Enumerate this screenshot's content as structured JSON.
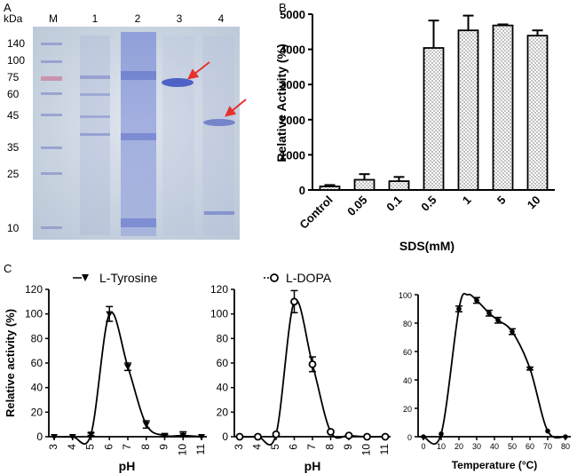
{
  "panels": {
    "a": "A",
    "b": "B",
    "c": "C"
  },
  "gel": {
    "unit_label": "kDa",
    "lanes": [
      "M",
      "1",
      "2",
      "3",
      "4"
    ],
    "markers": [
      "140",
      "100",
      "75",
      "60",
      "45",
      "35",
      "25",
      "10"
    ],
    "colors": {
      "background": "#c9d3df",
      "band": "#5d6fc9",
      "marker_band": "#7b86c9",
      "pink_band": "#c98aa3",
      "arrow": "#e8302c"
    }
  },
  "chart_data": [
    {
      "type": "bar",
      "panel": "B",
      "categories": [
        "Control",
        "0.05",
        "0.1",
        "0.5",
        "1",
        "5",
        "10"
      ],
      "values": [
        100,
        290,
        250,
        4040,
        4540,
        4680,
        4390
      ],
      "errors": [
        40,
        160,
        120,
        780,
        420,
        30,
        150
      ],
      "xlabel": "SDS(mM)",
      "ylabel": "Relative Activity (%)",
      "ylim": [
        0,
        5000
      ],
      "yticks": [
        "0",
        "1000",
        "2000",
        "3000",
        "4000",
        "5000"
      ],
      "grid": false,
      "fill": "dotted"
    },
    {
      "type": "line",
      "panel": "C-left",
      "series": [
        {
          "name": "L-Tyrosine",
          "marker": "triangle-down",
          "x": [
            3,
            4,
            5,
            6,
            7,
            8,
            9,
            10,
            11
          ],
          "y": [
            0,
            0,
            2,
            100,
            57,
            10,
            1,
            1,
            0
          ],
          "err": [
            0,
            0,
            1,
            6,
            3,
            3,
            1,
            3,
            0
          ]
        }
      ],
      "xlabel": "pH",
      "ylabel": "Relative activity (%)",
      "xticks": [
        "3",
        "4",
        "5",
        "6",
        "7",
        "8",
        "9",
        "10",
        "11"
      ],
      "yticks": [
        "0",
        "20",
        "40",
        "60",
        "80",
        "100",
        "120"
      ],
      "ylim": [
        0,
        120
      ]
    },
    {
      "type": "line",
      "panel": "C-middle",
      "series": [
        {
          "name": "L-DOPA",
          "marker": "circle-open",
          "x": [
            3,
            4,
            5,
            6,
            7,
            8,
            9,
            10,
            11
          ],
          "y": [
            0,
            0,
            2,
            110,
            59,
            4,
            1,
            0,
            0
          ],
          "err": [
            0,
            0,
            1,
            9,
            6,
            1,
            1,
            0,
            0
          ]
        }
      ],
      "xlabel": "pH",
      "ylabel": "",
      "xticks": [
        "3",
        "4",
        "5",
        "6",
        "7",
        "8",
        "9",
        "10",
        "11"
      ],
      "yticks": [
        "0",
        "20",
        "40",
        "60",
        "80",
        "100",
        "120"
      ],
      "ylim": [
        0,
        120
      ]
    },
    {
      "type": "line",
      "panel": "C-right",
      "series": [
        {
          "name": "",
          "marker": "dot",
          "x": [
            0,
            10,
            20,
            30,
            37,
            42,
            50,
            60,
            70,
            80
          ],
          "y": [
            0,
            2,
            90,
            96,
            87,
            82,
            74,
            48,
            4,
            0
          ],
          "err": [
            0,
            0,
            2,
            2,
            2,
            2,
            2,
            1,
            0,
            0
          ]
        }
      ],
      "curve_peak": {
        "x": 25,
        "y": 100
      },
      "xlabel": "Temperature (°C)",
      "ylabel": "",
      "xticks": [
        "0",
        "10",
        "20",
        "30",
        "40",
        "50",
        "60",
        "70",
        "80"
      ],
      "yticks": [
        "0",
        "20",
        "40",
        "60",
        "80",
        "100"
      ],
      "ylim": [
        0,
        100
      ]
    }
  ]
}
